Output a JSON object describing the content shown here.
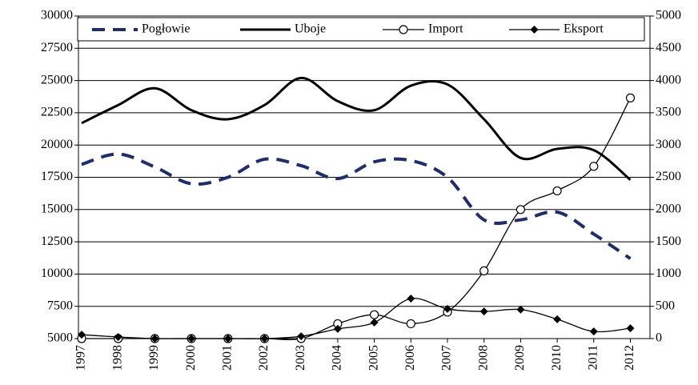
{
  "chart_data": {
    "type": "line",
    "categories": [
      "1997",
      "1998",
      "1999",
      "2000",
      "2001",
      "2002",
      "2003",
      "2004",
      "2005",
      "2006",
      "2007",
      "2008",
      "2009",
      "2010",
      "2011",
      "2012"
    ],
    "series": [
      {
        "name": "Pogłowie",
        "color": "#1f2d6b",
        "line_style": "dashed",
        "marker": "none",
        "values": [
          18500,
          19300,
          18300,
          17000,
          17500,
          18900,
          18400,
          17400,
          18700,
          18800,
          17500,
          14200,
          14200,
          14800,
          13100,
          11200
        ]
      },
      {
        "name": "Uboje",
        "color": "#000000",
        "line_style": "solid",
        "marker": "none",
        "values": [
          21700,
          23100,
          24400,
          22700,
          22000,
          23100,
          25200,
          23400,
          22700,
          24600,
          24700,
          22000,
          19000,
          19700,
          19600,
          17300
        ]
      },
      {
        "name": "Import",
        "color": "#000000",
        "line_style": "solid",
        "marker": "circle",
        "axis": "y2",
        "values": [
          0,
          0,
          0,
          0,
          0,
          0,
          0,
          230,
          370,
          230,
          410,
          1050,
          2000,
          2290,
          2670,
          3730
        ]
      },
      {
        "name": "Eksport",
        "color": "#000000",
        "line_style": "solid",
        "marker": "diamond",
        "axis": "y2",
        "values": [
          60,
          25,
          0,
          0,
          0,
          0,
          35,
          150,
          250,
          620,
          460,
          420,
          450,
          300,
          110,
          160
        ]
      }
    ],
    "ylim": [
      5000,
      30000
    ],
    "yticks": [
      5000,
      7500,
      10000,
      12500,
      15000,
      17500,
      20000,
      22500,
      25000,
      27500,
      30000
    ],
    "y2lim": [
      0,
      5000
    ],
    "y2ticks": [
      0,
      500,
      1000,
      1500,
      2000,
      2500,
      3000,
      3500,
      4000,
      4500,
      5000
    ],
    "grid": true,
    "smooth": true,
    "legend": "top"
  }
}
